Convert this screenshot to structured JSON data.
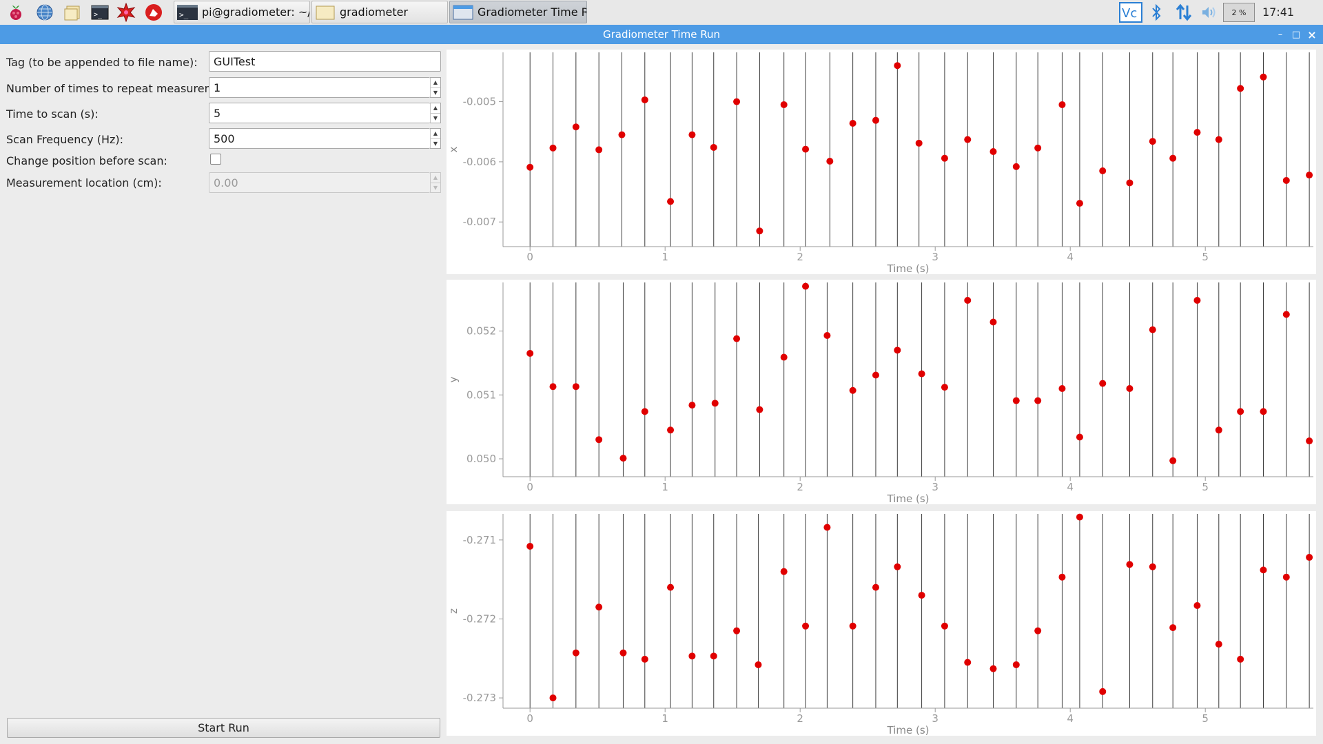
{
  "taskbar": {
    "launchers": [
      {
        "name": "raspberry-menu-icon"
      },
      {
        "name": "web-browser-icon"
      },
      {
        "name": "file-manager-icon"
      },
      {
        "name": "terminal-icon"
      },
      {
        "name": "mathematica-icon"
      },
      {
        "name": "wolfram-icon"
      }
    ],
    "tasks": [
      {
        "label": "pi@gradiometer: ~/gr...",
        "icon": "terminal-icon"
      },
      {
        "label": "gradiometer",
        "icon": "folder-icon"
      },
      {
        "label": "Gradiometer Time Run",
        "icon": "window-icon",
        "active": true
      }
    ],
    "tray": {
      "cpu": "2 %",
      "clock": "17:41"
    }
  },
  "window": {
    "title": "Gradiometer Time Run",
    "controls": [
      "–",
      "□",
      "×"
    ]
  },
  "form": {
    "tag_label": "Tag (to be appended to file name):",
    "tag_value": "GUITest",
    "repeat_label": "Number of times to repeat measurement:",
    "repeat_value": "1",
    "scan_time_label": "Time to scan (s):",
    "scan_time_value": "5",
    "freq_label": "Scan Frequency (Hz):",
    "freq_value": "500",
    "change_pos_label": "Change position before scan:",
    "change_pos_checked": false,
    "location_label": "Measurement location (cm):",
    "location_value": "0.00",
    "start_button": "Start Run"
  },
  "chart_data": [
    {
      "type": "scatter",
      "ylabel": "x",
      "xlabel": "Time (s)",
      "xlim": [
        -0.2,
        5.8
      ],
      "ylim": [
        -0.00741,
        -0.00418
      ],
      "yticks": [
        -0.005,
        -0.006,
        -0.007
      ],
      "ytick_labels": [
        "-0.005",
        "-0.006",
        "-0.007"
      ],
      "xticks": [
        0,
        1,
        2,
        3,
        4,
        5
      ],
      "color": "#e00000",
      "x": [
        0.0,
        0.17,
        0.34,
        0.51,
        0.68,
        0.85,
        1.04,
        1.2,
        1.36,
        1.53,
        1.7,
        1.88,
        2.04,
        2.22,
        2.39,
        2.56,
        2.72,
        2.88,
        3.07,
        3.24,
        3.43,
        3.6,
        3.76,
        3.94,
        4.07,
        4.24,
        4.44,
        4.61,
        4.76,
        4.94,
        5.1,
        5.26,
        5.43,
        5.6,
        5.77
      ],
      "y": [
        -0.00609,
        -0.00577,
        -0.00542,
        -0.0058,
        -0.00555,
        -0.00497,
        -0.00666,
        -0.00555,
        -0.00576,
        -0.005,
        -0.00715,
        -0.00505,
        -0.00579,
        -0.00599,
        -0.00536,
        -0.00531,
        -0.0044,
        -0.00569,
        -0.00594,
        -0.00563,
        -0.00583,
        -0.00608,
        -0.00577,
        -0.00505,
        -0.00669,
        -0.00615,
        -0.00635,
        -0.00566,
        -0.00594,
        -0.00551,
        -0.00563,
        -0.00478,
        -0.00459,
        -0.00631,
        -0.00622
      ]
    },
    {
      "type": "scatter",
      "ylabel": "y",
      "xlabel": "Time (s)",
      "xlim": [
        -0.2,
        5.8
      ],
      "ylim": [
        0.04972,
        0.05276
      ],
      "yticks": [
        0.052,
        0.051,
        0.05
      ],
      "ytick_labels": [
        "0.052",
        "0.051",
        "0.050"
      ],
      "xticks": [
        0,
        1,
        2,
        3,
        4,
        5
      ],
      "color": "#e00000",
      "x": [
        0.0,
        0.17,
        0.34,
        0.51,
        0.69,
        0.85,
        1.04,
        1.2,
        1.37,
        1.53,
        1.7,
        1.88,
        2.04,
        2.2,
        2.39,
        2.56,
        2.72,
        2.9,
        3.07,
        3.24,
        3.43,
        3.6,
        3.76,
        3.94,
        4.07,
        4.24,
        4.44,
        4.61,
        4.76,
        4.94,
        5.1,
        5.26,
        5.43,
        5.6,
        5.77
      ],
      "y": [
        0.05165,
        0.05113,
        0.05113,
        0.0503,
        0.05001,
        0.05074,
        0.05045,
        0.05084,
        0.05087,
        0.05188,
        0.05077,
        0.05159,
        0.0527,
        0.05193,
        0.05107,
        0.05131,
        0.0517,
        0.05133,
        0.05112,
        0.05248,
        0.05214,
        0.05091,
        0.05091,
        0.0511,
        0.05034,
        0.05118,
        0.0511,
        0.05202,
        0.04997,
        0.05248,
        0.05045,
        0.05074,
        0.05074,
        0.05226,
        0.05028
      ]
    },
    {
      "type": "scatter",
      "ylabel": "z",
      "xlabel": "Time (s)",
      "xlim": [
        -0.2,
        5.8
      ],
      "ylim": [
        -0.27313,
        -0.27067
      ],
      "yticks": [
        -0.271,
        -0.272,
        -0.273
      ],
      "ytick_labels": [
        "-0.271",
        "-0.272",
        "-0.273"
      ],
      "xticks": [
        0,
        1,
        2,
        3,
        4,
        5
      ],
      "color": "#e00000",
      "x": [
        0.0,
        0.17,
        0.34,
        0.51,
        0.69,
        0.85,
        1.04,
        1.2,
        1.36,
        1.53,
        1.69,
        1.88,
        2.04,
        2.2,
        2.39,
        2.56,
        2.72,
        2.9,
        3.07,
        3.24,
        3.43,
        3.6,
        3.76,
        3.94,
        4.07,
        4.24,
        4.44,
        4.61,
        4.76,
        4.94,
        5.1,
        5.26,
        5.43,
        5.6,
        5.77
      ],
      "y": [
        -0.27108,
        -0.273,
        -0.27243,
        -0.27185,
        -0.27243,
        -0.27251,
        -0.2716,
        -0.27247,
        -0.27247,
        -0.27215,
        -0.27258,
        -0.2714,
        -0.27209,
        -0.27084,
        -0.27209,
        -0.2716,
        -0.27134,
        -0.2717,
        -0.27209,
        -0.27255,
        -0.27263,
        -0.27258,
        -0.27215,
        -0.27147,
        -0.27071,
        -0.27292,
        -0.27131,
        -0.27134,
        -0.27211,
        -0.27183,
        -0.27232,
        -0.27251,
        -0.27138,
        -0.27147,
        -0.27122
      ]
    }
  ]
}
